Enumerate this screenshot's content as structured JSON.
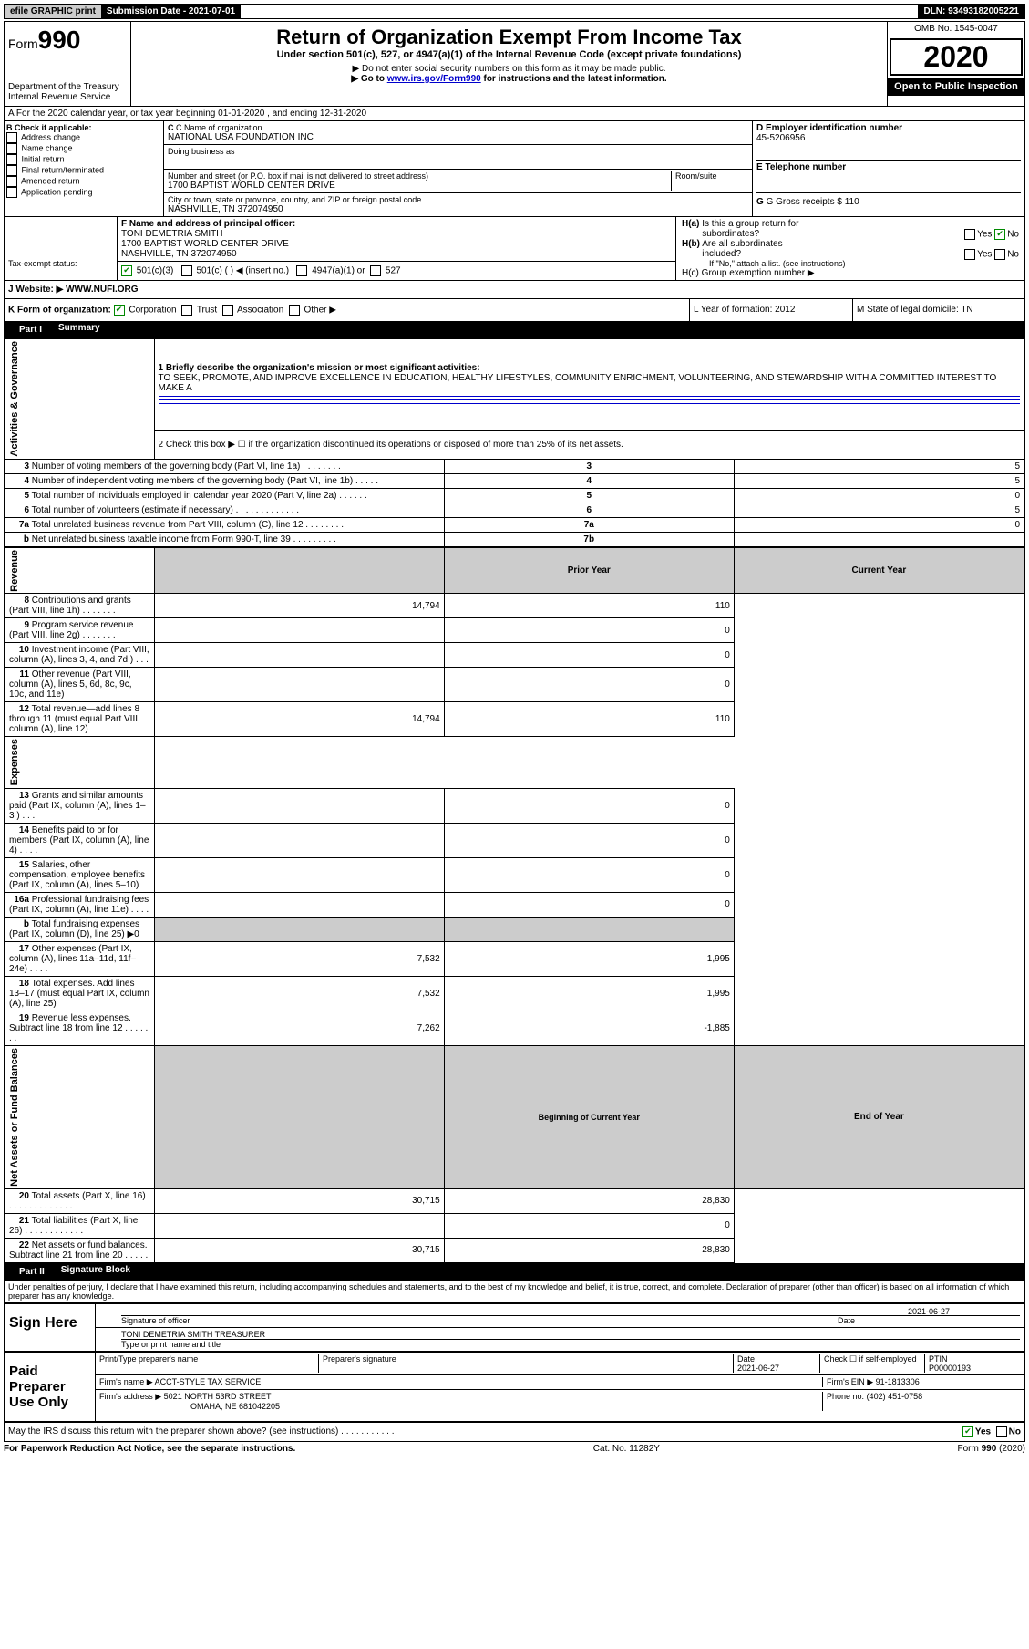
{
  "top": {
    "efile": "efile GRAPHIC print",
    "submission_label": "Submission Date - 2021-07-01",
    "dln": "DLN: 93493182005221"
  },
  "header": {
    "form_word": "Form",
    "form_num": "990",
    "dept": "Department of the Treasury",
    "irs": "Internal Revenue Service",
    "title": "Return of Organization Exempt From Income Tax",
    "subtitle": "Under section 501(c), 527, or 4947(a)(1) of the Internal Revenue Code (except private foundations)",
    "note1": "▶ Do not enter social security numbers on this form as it may be made public.",
    "note2_a": "▶ Go to ",
    "note2_link": "www.irs.gov/Form990",
    "note2_b": " for instructions and the latest information.",
    "omb": "OMB No. 1545-0047",
    "year": "2020",
    "open": "Open to Public Inspection"
  },
  "sectionA": {
    "line": "A For the 2020 calendar year, or tax year beginning 01-01-2020    , and ending 12-31-2020",
    "b_label": "B Check if applicable:",
    "b_opts": [
      "Address change",
      "Name change",
      "Initial return",
      "Final return/terminated",
      "Amended return",
      "Application pending"
    ],
    "c_label": "C Name of organization",
    "c_name": "NATIONAL USA FOUNDATION INC",
    "dba_label": "Doing business as",
    "addr_label": "Number and street (or P.O. box if mail is not delivered to street address)",
    "room_label": "Room/suite",
    "addr": "1700 BAPTIST WORLD CENTER DRIVE",
    "city_label": "City or town, state or province, country, and ZIP or foreign postal code",
    "city": "NASHVILLE, TN  372074950",
    "d_label": "D Employer identification number",
    "d_val": "45-5206956",
    "e_label": "E Telephone number",
    "g_label": "G Gross receipts $ 110",
    "f_label": "F  Name and address of principal officer:",
    "f_name": "TONI DEMETRIA SMITH",
    "f_addr1": "1700 BAPTIST WORLD CENTER DRIVE",
    "f_addr2": "NASHVILLE, TN  372074950",
    "h_a": "H(a)  Is this a group return for subordinates?",
    "h_b": "H(b)  Are all subordinates included?",
    "h_b2": "If \"No,\" attach a list. (see instructions)",
    "h_c": "H(c)  Group exemption number ▶",
    "yes": "Yes",
    "no": "No",
    "tax_label": "Tax-exempt status:",
    "tax_501c3": "501(c)(3)",
    "tax_501c": "501(c) (   ) ◀ (insert no.)",
    "tax_4947": "4947(a)(1) or",
    "tax_527": "527",
    "website_label": "J     Website: ▶",
    "website": "WWW.NUFI.ORG",
    "k_label": "K Form of organization:",
    "k_corp": "Corporation",
    "k_trust": "Trust",
    "k_assoc": "Association",
    "k_other": "Other ▶",
    "l_label": "L Year of formation: 2012",
    "m_label": "M State of legal domicile: TN"
  },
  "part1": {
    "tab": "Part I",
    "title": "Summary",
    "q1_label": "1  Briefly describe the organization's mission or most significant activities:",
    "q1_text": "TO SEEK, PROMOTE, AND IMPROVE EXCELLENCE IN EDUCATION, HEALTHY LIFESTYLES, COMMUNITY ENRICHMENT, VOLUNTEERING, AND STEWARDSHIP WITH A COMMITTED INTEREST TO MAKE A",
    "q2": "2   Check this box ▶ ☐  if the organization discontinued its operations or disposed of more than 25% of its net assets.",
    "rot1": "Activities & Governance",
    "rot2": "Revenue",
    "rot3": "Expenses",
    "rot4": "Net Assets or Fund Balances",
    "col_prior": "Prior Year",
    "col_current": "Current Year",
    "col_begin": "Beginning of Current Year",
    "col_end": "End of Year",
    "rows_top": [
      {
        "n": "3",
        "t": "Number of voting members of the governing body (Part VI, line 1a)  .   .   .   .   .   .   .   .",
        "b": "3",
        "v": "5"
      },
      {
        "n": "4",
        "t": "Number of independent voting members of the governing body (Part VI, line 1b)  .   .   .   .   .",
        "b": "4",
        "v": "5"
      },
      {
        "n": "5",
        "t": "Total number of individuals employed in calendar year 2020 (Part V, line 2a)  .   .   .   .   .   .",
        "b": "5",
        "v": "0"
      },
      {
        "n": "6",
        "t": "Total number of volunteers (estimate if necessary)   .   .   .   .   .   .   .   .   .   .   .   .   .",
        "b": "6",
        "v": "5"
      },
      {
        "n": "7a",
        "t": "Total unrelated business revenue from Part VIII, column (C), line 12   .   .   .   .   .   .   .   .",
        "b": "7a",
        "v": "0"
      },
      {
        "n": "b",
        "t": "Net unrelated business taxable income from Form 990-T, line 39   .   .   .   .   .   .   .   .   .",
        "b": "7b",
        "v": ""
      }
    ],
    "rows_rev": [
      {
        "n": "8",
        "t": "Contributions and grants (Part VIII, line 1h)   .   .   .   .   .   .   .",
        "p": "14,794",
        "c": "110"
      },
      {
        "n": "9",
        "t": "Program service revenue (Part VIII, line 2g)   .   .   .   .   .   .   .",
        "p": "",
        "c": "0"
      },
      {
        "n": "10",
        "t": "Investment income (Part VIII, column (A), lines 3, 4, and 7d )   .   .   .",
        "p": "",
        "c": "0"
      },
      {
        "n": "11",
        "t": "Other revenue (Part VIII, column (A), lines 5, 6d, 8c, 9c, 10c, and 11e)",
        "p": "",
        "c": "0"
      },
      {
        "n": "12",
        "t": "Total revenue—add lines 8 through 11 (must equal Part VIII, column (A), line 12)",
        "p": "14,794",
        "c": "110"
      }
    ],
    "rows_exp": [
      {
        "n": "13",
        "t": "Grants and similar amounts paid (Part IX, column (A), lines 1–3 )   .   .   .",
        "p": "",
        "c": "0"
      },
      {
        "n": "14",
        "t": "Benefits paid to or for members (Part IX, column (A), line 4)   .   .   .   .",
        "p": "",
        "c": "0"
      },
      {
        "n": "15",
        "t": "Salaries, other compensation, employee benefits (Part IX, column (A), lines 5–10)",
        "p": "",
        "c": "0"
      },
      {
        "n": "16a",
        "t": "Professional fundraising fees (Part IX, column (A), line 11e)   .   .   .   .",
        "p": "",
        "c": "0"
      },
      {
        "n": "b",
        "t": "Total fundraising expenses (Part IX, column (D), line 25) ▶0",
        "p": "SHADE",
        "c": "SHADE"
      },
      {
        "n": "17",
        "t": "Other expenses (Part IX, column (A), lines 11a–11d, 11f–24e)   .   .   .   .",
        "p": "7,532",
        "c": "1,995"
      },
      {
        "n": "18",
        "t": "Total expenses. Add lines 13–17 (must equal Part IX, column (A), line 25)",
        "p": "7,532",
        "c": "1,995"
      },
      {
        "n": "19",
        "t": "Revenue less expenses. Subtract line 18 from line 12   .   .   .   .   .   .   .",
        "p": "7,262",
        "c": "-1,885"
      }
    ],
    "rows_net": [
      {
        "n": "20",
        "t": "Total assets (Part X, line 16)   .   .   .   .   .   .   .   .   .   .   .   .   .",
        "p": "30,715",
        "c": "28,830"
      },
      {
        "n": "21",
        "t": "Total liabilities (Part X, line 26)   .   .   .   .   .   .   .   .   .   .   .   .",
        "p": "",
        "c": "0"
      },
      {
        "n": "22",
        "t": "Net assets or fund balances. Subtract line 21 from line 20   .   .   .   .   .",
        "p": "30,715",
        "c": "28,830"
      }
    ]
  },
  "part2": {
    "tab": "Part II",
    "title": "Signature Block",
    "perjury": "Under penalties of perjury, I declare that I have examined this return, including accompanying schedules and statements, and to the best of my knowledge and belief, it is true, correct, and complete. Declaration of preparer (other than officer) is based on all information of which preparer has any knowledge.",
    "sign_here": "Sign Here",
    "sig_officer": "Signature of officer",
    "date_label": "Date",
    "date": "2021-06-27",
    "officer_name": "TONI DEMETRIA SMITH  TREASURER",
    "type_name": "Type or print name and title",
    "paid": "Paid Preparer Use Only",
    "prep_name_label": "Print/Type preparer's name",
    "prep_sig_label": "Preparer's signature",
    "prep_date_label": "Date",
    "prep_date": "2021-06-27",
    "check_self": "Check ☐ if self-employed",
    "ptin_label": "PTIN",
    "ptin": "P00000193",
    "firm_name_label": "Firm's name     ▶",
    "firm_name": "ACCT-STYLE TAX SERVICE",
    "firm_ein_label": "Firm's EIN ▶",
    "firm_ein": "91-1813306",
    "firm_addr_label": "Firm's address ▶",
    "firm_addr1": "5021 NORTH 53RD STREET",
    "firm_addr2": "OMAHA, NE  681042205",
    "phone_label": "Phone no.",
    "phone": "(402) 451-0758",
    "discuss": "May the IRS discuss this return with the preparer shown above? (see instructions)   .   .   .   .   .   .   .   .   .   .   .",
    "discuss_yes": "Yes",
    "discuss_no": "No"
  },
  "footer": {
    "left": "For Paperwork Reduction Act Notice, see the separate instructions.",
    "mid": "Cat. No. 11282Y",
    "right": "Form 990 (2020)"
  }
}
